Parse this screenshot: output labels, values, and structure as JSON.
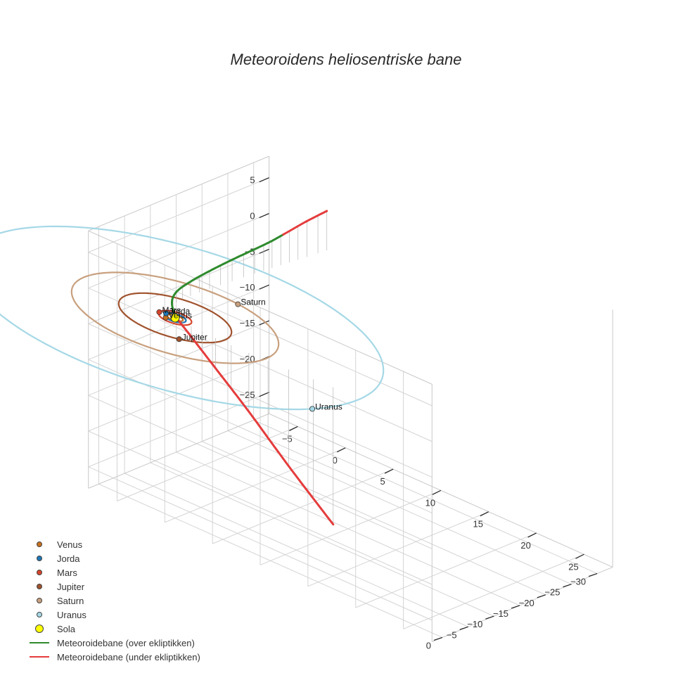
{
  "title": "Meteoroidens heliosentriske bane",
  "colors": {
    "grid": "#d4d4d4",
    "axis_line": "#c8c8c8",
    "droplines": "#b8b8b8",
    "over": "#2e8b2e",
    "under": "#e53c3c"
  },
  "chart_data": {
    "type": "line",
    "projection": "3d",
    "x_ticks": [
      -5,
      0,
      5,
      10,
      15,
      20,
      25
    ],
    "y_ticks": [
      -30,
      -25,
      -20,
      -15,
      -10,
      -5,
      0
    ],
    "z_ticks": [
      5,
      0,
      -5,
      -10,
      -15,
      -20,
      -25
    ],
    "ranges": {
      "x": [
        -8,
        28
      ],
      "y": [
        -33,
        2
      ],
      "z": [
        -28,
        8
      ]
    },
    "orbits": [
      {
        "name": "Venus",
        "radius": 0.72,
        "color": "#c8701e"
      },
      {
        "name": "Jorda",
        "radius": 1.0,
        "color": "#1f77b4"
      },
      {
        "name": "Mars",
        "radius": 1.52,
        "color": "#d6452b"
      },
      {
        "name": "Jupiter",
        "radius": 5.2,
        "color": "#a0522d"
      },
      {
        "name": "Saturn",
        "radius": 9.54,
        "color": "#c8a07e"
      },
      {
        "name": "Uranus",
        "radius": 19.2,
        "color": "#a5d8e6"
      }
    ],
    "planets": [
      {
        "name": "Venus",
        "x": -0.5,
        "y": 0.9,
        "z": 0,
        "color": "#c8701e"
      },
      {
        "name": "Jorda",
        "x": -1.0,
        "y": -0.1,
        "z": 0,
        "color": "#1f77b4"
      },
      {
        "name": "Mars",
        "x": -1.5,
        "y": 0.3,
        "z": 0,
        "color": "#d6452b"
      },
      {
        "name": "Jupiter",
        "x": 2.8,
        "y": 4.4,
        "z": 0,
        "color": "#a0522d"
      },
      {
        "name": "Saturn",
        "x": 1.5,
        "y": -9.4,
        "z": 0,
        "color": "#c8a07e"
      },
      {
        "name": "Uranus",
        "x": 18.0,
        "y": 6.7,
        "z": 0,
        "color": "#a5d8e6"
      }
    ],
    "sun": {
      "name": "Sola",
      "x": 0,
      "y": 0,
      "z": 0,
      "color": "#ffff00"
    },
    "trajectory": {
      "series": [
        {
          "name": "Meteoroidebane (over ekliptikken)",
          "color": "#2e8b2e"
        },
        {
          "name": "Meteoroidebane (under ekliptikken)",
          "color": "#e53c3c"
        }
      ],
      "points": [
        {
          "x": 16.4,
          "y": -0.3,
          "z": -19.2
        },
        {
          "x": 12.0,
          "y": 0.2,
          "z": -13.5
        },
        {
          "x": 8.0,
          "y": 0.5,
          "z": -8.2
        },
        {
          "x": 4.5,
          "y": 0.5,
          "z": -4.2
        },
        {
          "x": 1.8,
          "y": 0.2,
          "z": -1.5
        },
        {
          "x": 0.0,
          "y": -0.3,
          "z": 0.0
        },
        {
          "x": -1.2,
          "y": -1.6,
          "z": 0.9
        },
        {
          "x": -1.8,
          "y": -3.6,
          "z": 1.5
        },
        {
          "x": -1.9,
          "y": -6.5,
          "z": 2.0
        },
        {
          "x": -1.8,
          "y": -10.0,
          "z": 2.5
        },
        {
          "x": -1.6,
          "y": -14.0,
          "z": 3.0
        },
        {
          "x": -1.4,
          "y": -18.0,
          "z": 3.4
        },
        {
          "x": -1.2,
          "y": -21.0,
          "z": 3.8
        },
        {
          "x": -1.0,
          "y": -24.0,
          "z": 4.4
        },
        {
          "x": -0.8,
          "y": -27.0,
          "z": 5.0
        },
        {
          "x": -0.6,
          "y": -30.5,
          "z": 5.5
        }
      ]
    },
    "legend": [
      {
        "label": "Venus",
        "kind": "dot",
        "color": "#c8701e"
      },
      {
        "label": "Jorda",
        "kind": "dot",
        "color": "#1f77b4"
      },
      {
        "label": "Mars",
        "kind": "dot",
        "color": "#d6452b"
      },
      {
        "label": "Jupiter",
        "kind": "dot",
        "color": "#a0522d"
      },
      {
        "label": "Saturn",
        "kind": "dot",
        "color": "#c8a07e"
      },
      {
        "label": "Uranus",
        "kind": "dot",
        "color": "#a5d8e6"
      },
      {
        "label": "Sola",
        "kind": "bigdot",
        "color": "#ffff00"
      },
      {
        "label": "Meteoroidebane (over ekliptikken)",
        "kind": "line",
        "color": "#2e8b2e"
      },
      {
        "label": "Meteoroidebane (under ekliptikken)",
        "kind": "line",
        "color": "#e53c3c"
      }
    ]
  }
}
